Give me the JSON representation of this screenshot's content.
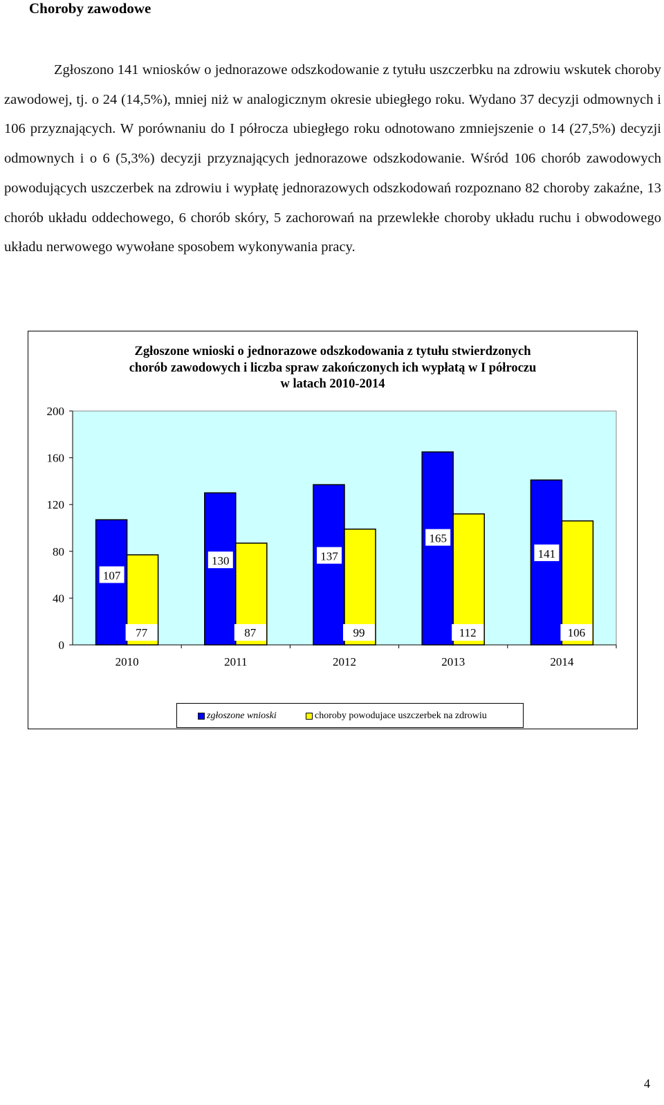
{
  "page": {
    "heading": "Choroby zawodowe",
    "paragraph": "Zgłoszono 141 wniosków o jednorazowe odszkodowanie z tytułu uszczerbku na zdrowiu wskutek choroby zawodowej, tj. o 24 (14,5%), mniej niż w analogicznym okresie ubiegłego roku. Wydano 37 decyzji odmownych i 106 przyznających. W porównaniu do I półrocza ubiegłego roku odnotowano zmniejszenie o 14 (27,5%) decyzji odmownych i o 6 (5,3%) decyzji przyznających jednorazowe odszkodowanie. Wśród 106 chorób zawodowych powodujących uszczerbek na zdrowiu i wypłatę jednorazowych odszkodowań rozpoznano 82 choroby zakaźne, 13 chorób układu oddechowego, 6 chorób skóry, 5 zachorowań na przewlekłe choroby układu ruchu i obwodowego układu nerwowego wywołane sposobem wykonywania pracy.",
    "page_number": "4"
  },
  "chart_data": {
    "type": "bar",
    "title_lines": [
      "Zgłoszone wnioski o jednorazowe odszkodowania z tytułu stwierdzonych",
      "chorób zawodowych i liczba spraw zakończonych ich wypłatą w I półroczu",
      "w latach 2010-2014"
    ],
    "categories": [
      "2010",
      "2011",
      "2012",
      "2013",
      "2014"
    ],
    "series": [
      {
        "name": "zgłoszone wnioski",
        "values": [
          107,
          130,
          137,
          165,
          141
        ],
        "color": "#0000FF"
      },
      {
        "name": "choroby powodujace uszczerbek na zdrowiu",
        "values": [
          77,
          87,
          99,
          112,
          106
        ],
        "color": "#FFFF00"
      }
    ],
    "yticks": [
      "0",
      "40",
      "80",
      "120",
      "160",
      "200"
    ],
    "ylim": [
      0,
      200
    ],
    "plot_background": "#CCFFFF",
    "legend_position": "bottom"
  }
}
